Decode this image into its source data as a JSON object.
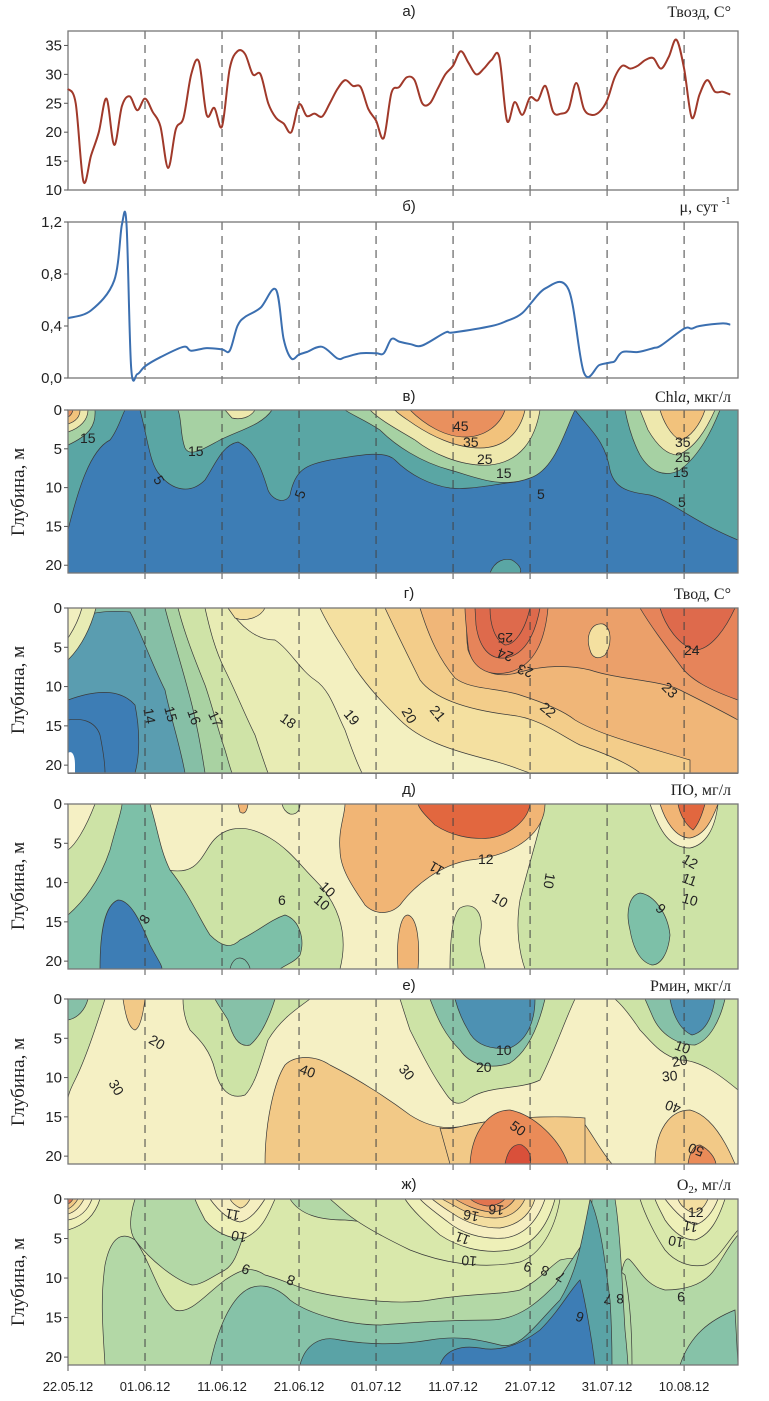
{
  "figure": {
    "x_dates": [
      "22.05.12",
      "01.06.12",
      "11.06.12",
      "21.06.12",
      "01.07.12",
      "11.07.12",
      "21.07.12",
      "31.07.12",
      "10.08.12"
    ],
    "depth_label": "Глубина, м",
    "colors": {
      "air_temp_line": "#a0392a",
      "growth_line": "#3b6fb0",
      "frame": "#777777",
      "dash": "#444444"
    }
  },
  "chart_data": [
    {
      "id": "a",
      "type": "line",
      "panel_label": "а)",
      "title": "Твозд, С°",
      "ylabel": "",
      "ylim": [
        10,
        37.5
      ],
      "yticks": [
        "10",
        "15",
        "20",
        "25",
        "30",
        "35"
      ],
      "ytick_values": [
        10,
        15,
        20,
        25,
        30,
        35
      ],
      "x_days": [
        0,
        1,
        2,
        3,
        4,
        5,
        6,
        7,
        8,
        9,
        10,
        11,
        12,
        13,
        14,
        15,
        16,
        17,
        18,
        19,
        20,
        21,
        22,
        23,
        24,
        25,
        26,
        27,
        28,
        29,
        30,
        31,
        32,
        33,
        34,
        35,
        36,
        37,
        38,
        39,
        40,
        41,
        42,
        43,
        44,
        45,
        46,
        47,
        48,
        49,
        50,
        51,
        52,
        53,
        54,
        55,
        56,
        57,
        58,
        59,
        60,
        61,
        62,
        63,
        64,
        65,
        66,
        67,
        68,
        69,
        70,
        71,
        72,
        73,
        74,
        75,
        76,
        77,
        78,
        79,
        80,
        81,
        82,
        83,
        84,
        85,
        86
      ],
      "series": [
        {
          "name": "Твозд",
          "values": [
            27.5,
            25,
            11.5,
            16,
            20,
            25.8,
            17.8,
            24.5,
            26.2,
            23.8,
            25.8,
            23.5,
            21,
            13.8,
            20.5,
            22.5,
            30,
            32.2,
            23,
            24.2,
            21,
            31,
            34,
            33.5,
            30,
            30,
            25,
            22.5,
            21.5,
            20,
            24.8,
            22.8,
            23.2,
            22.7,
            25,
            27.5,
            29,
            28,
            27.8,
            24,
            22,
            19,
            26.8,
            27.8,
            29.5,
            29,
            25,
            25,
            27.5,
            30,
            31.5,
            34,
            32,
            30,
            31,
            32.5,
            33,
            22,
            25.2,
            23,
            26,
            25.5,
            28,
            23.5,
            23.2,
            24,
            28.5,
            24,
            23,
            23.5,
            25.5,
            29.5,
            31.5,
            31,
            31.5,
            32.5,
            32.8,
            31,
            33,
            36,
            31,
            22.5,
            26.5,
            29,
            27,
            27,
            26.5
          ]
        }
      ]
    },
    {
      "id": "b",
      "type": "line",
      "panel_label": "б)",
      "title": "μ, сут -1",
      "title_main": "μ, сут",
      "title_sup": "-1",
      "ylim": [
        0,
        1.2
      ],
      "yticks": [
        "0,0",
        "0,4",
        "0,8",
        "1,2"
      ],
      "ytick_values": [
        0,
        0.4,
        0.8,
        1.2
      ],
      "x_days": [
        0,
        3,
        6,
        7,
        7.6,
        8.2,
        9,
        10,
        12,
        15,
        16,
        18,
        20,
        21,
        22,
        23,
        25,
        27,
        28,
        29,
        30,
        31,
        33,
        35,
        36,
        38,
        40,
        41,
        42,
        43,
        44.5,
        46,
        49,
        50,
        55,
        57,
        59,
        62,
        65,
        67,
        69,
        70.5,
        71,
        72,
        74,
        76,
        77,
        80,
        81,
        82,
        85,
        86
      ],
      "series": [
        {
          "name": "μ",
          "values": [
            0.46,
            0.52,
            0.75,
            1.18,
            1.18,
            0.08,
            0.03,
            0.09,
            0.16,
            0.24,
            0.21,
            0.23,
            0.22,
            0.21,
            0.4,
            0.47,
            0.54,
            0.68,
            0.3,
            0.15,
            0.18,
            0.2,
            0.24,
            0.15,
            0.16,
            0.19,
            0.19,
            0.19,
            0.3,
            0.28,
            0.26,
            0.25,
            0.35,
            0.35,
            0.4,
            0.44,
            0.5,
            0.69,
            0.68,
            0.04,
            0.1,
            0.12,
            0.13,
            0.2,
            0.2,
            0.23,
            0.25,
            0.38,
            0.38,
            0.4,
            0.42,
            0.41
          ]
        }
      ]
    },
    {
      "id": "c",
      "type": "heatmap",
      "panel_label": "в)",
      "title": "Chla, мкг/л",
      "title_main": "Chl",
      "title_italic": "a",
      "title_rest": ", мкг/л",
      "ylabel": "Глубина, м",
      "ylim": [
        21,
        0
      ],
      "yticks": [
        "0",
        "5",
        "10",
        "15",
        "20"
      ],
      "contour_labels": [
        "15",
        "15",
        "5",
        "5",
        "45",
        "35",
        "25",
        "15",
        "5",
        "35",
        "25",
        "15",
        "5"
      ],
      "levels": [
        5,
        15,
        25,
        35,
        45
      ],
      "colorscale": [
        "#3d7db5",
        "#5aa6a4",
        "#a6d1a3",
        "#eee8ad",
        "#f2c27c",
        "#e9905e"
      ]
    },
    {
      "id": "d",
      "type": "heatmap",
      "panel_label": "г)",
      "title": "Твод, С°",
      "ylabel": "Глубина, м",
      "ylim": [
        21,
        0
      ],
      "yticks": [
        "0",
        "5",
        "10",
        "15",
        "20"
      ],
      "contour_labels": [
        "14",
        "15",
        "16",
        "17",
        "18",
        "19",
        "20",
        "21",
        "22",
        "23",
        "24",
        "25",
        "23",
        "24"
      ],
      "levels": [
        12,
        13,
        14,
        15,
        16,
        17,
        18,
        19,
        20,
        21,
        22,
        23,
        24,
        25
      ],
      "colorscale": [
        "#3d7db5",
        "#5a9db0",
        "#86bfa6",
        "#a9d2a2",
        "#cfe3a7",
        "#e8ecb4",
        "#f3f0c0",
        "#f4e0a0",
        "#f3cd8a",
        "#f0b678",
        "#eba06a",
        "#e6845a",
        "#de6a4c"
      ]
    },
    {
      "id": "e",
      "type": "heatmap",
      "panel_label": "д)",
      "title": "ПО, мг/л",
      "ylabel": "Глубина, м",
      "ylim": [
        21,
        0
      ],
      "yticks": [
        "0",
        "5",
        "10",
        "15",
        "20"
      ],
      "contour_labels": [
        "12",
        "12",
        "11",
        "10",
        "11",
        "10",
        "10",
        "10",
        "6",
        "10",
        "8",
        "9"
      ],
      "levels": [
        8,
        9,
        10,
        11,
        12
      ],
      "colorscale": [
        "#3d7db5",
        "#7dc0a8",
        "#cde3a6",
        "#f5f0c4",
        "#f1b575",
        "#e2673f"
      ]
    },
    {
      "id": "f",
      "type": "heatmap",
      "panel_label": "е)",
      "title": "Pмин, мкг/л",
      "ylabel": "Глубина, м",
      "ylim": [
        21,
        0
      ],
      "yticks": [
        "0",
        "5",
        "10",
        "15",
        "20"
      ],
      "contour_labels": [
        "20",
        "30",
        "40",
        "30",
        "10",
        "20",
        "10",
        "20",
        "30",
        "40",
        "50",
        "50"
      ],
      "levels": [
        10,
        20,
        30,
        40,
        50
      ],
      "colorscale": [
        "#4d91b3",
        "#86c1a8",
        "#cde3a6",
        "#f5f0c4",
        "#f2c987",
        "#ea8b58",
        "#d9503a"
      ]
    },
    {
      "id": "g",
      "type": "heatmap",
      "panel_label": "ж)",
      "title": "O2, мг/л",
      "title_main": "O",
      "title_sub": "2",
      "title_rest": ", мг/л",
      "ylabel": "Глубина, м",
      "ylim": [
        21,
        0
      ],
      "yticks": [
        "0",
        "5",
        "10",
        "15",
        "20"
      ],
      "xticks": [
        "22.05.12",
        "01.06.12",
        "11.06.12",
        "21.06.12",
        "01.07.12",
        "11.07.12",
        "21.07.12",
        "31.07.12",
        "10.08.12"
      ],
      "contour_labels": [
        "11",
        "10",
        "9",
        "8",
        "16",
        "16",
        "11",
        "10",
        "9",
        "8",
        "7",
        "7",
        "8",
        "6",
        "12",
        "11",
        "10",
        "9"
      ],
      "levels": [
        6,
        7,
        8,
        9,
        10,
        11,
        12,
        13,
        14,
        15,
        16
      ],
      "colorscale": [
        "#3d7db5",
        "#5aa3a6",
        "#86c2a8",
        "#b3d8a6",
        "#d9e8ab",
        "#eef0b8",
        "#f5eec0",
        "#f3dea0",
        "#f1c784",
        "#eca56d",
        "#e2744f"
      ]
    }
  ]
}
